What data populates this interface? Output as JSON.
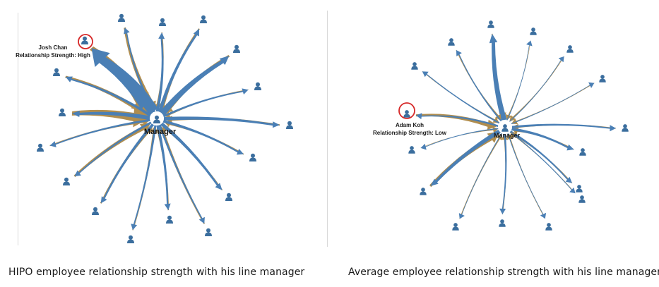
{
  "left_panel": {
    "caption": "HIPO employee relationship strength with his line manager",
    "manager_label": "Manager",
    "highlight_name": "Josh Chan",
    "highlight_strength": "Relationship Strength: High"
  },
  "right_panel": {
    "caption": "Average employee relationship strength with his line manager",
    "manager_label": "Manager",
    "highlight_name": "Adam Koh",
    "highlight_strength_prefix": "Relationship Strength: ",
    "highlight_strength_value": "Low"
  },
  "colors": {
    "blue": "#4a7fb5",
    "gold": "#b08d4e",
    "highlight_ring": "#d62828",
    "node": "#3b6e9e"
  }
}
